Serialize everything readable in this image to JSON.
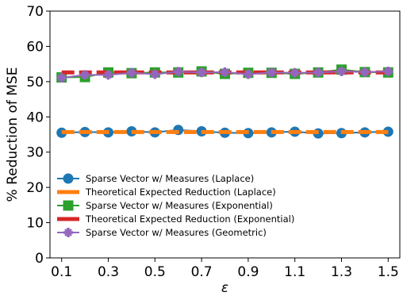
{
  "chart_data": {
    "type": "line",
    "xlabel": "ε",
    "ylabel": "% Reduction of MSE",
    "xlim": [
      0.05,
      1.55
    ],
    "ylim": [
      0,
      70
    ],
    "xticks": [
      0.1,
      0.3,
      0.5,
      0.7,
      0.9,
      1.1,
      1.3,
      1.5
    ],
    "xtick_labels": [
      "0.1",
      "0.3",
      "0.5",
      "0.7",
      "0.9",
      "1.1",
      "1.3",
      "1.5"
    ],
    "yticks": [
      0,
      10,
      20,
      30,
      40,
      50,
      60,
      70
    ],
    "ytick_labels": [
      "0",
      "10",
      "20",
      "30",
      "40",
      "50",
      "60",
      "70"
    ],
    "x": [
      0.1,
      0.2,
      0.3,
      0.4,
      0.5,
      0.6,
      0.7,
      0.8,
      0.9,
      1.0,
      1.1,
      1.2,
      1.3,
      1.4,
      1.5
    ],
    "legend_position": "lower-left",
    "series": [
      {
        "name": "Sparse Vector w/ Measures (Laplace)",
        "style": "line-circle",
        "color": "#1f77b4",
        "values": [
          35.5,
          35.7,
          35.6,
          35.9,
          35.6,
          36.3,
          35.9,
          35.5,
          35.4,
          35.6,
          35.8,
          35.3,
          35.4,
          35.6,
          35.8
        ]
      },
      {
        "name": "Theoretical Expected Reduction (Laplace)",
        "style": "dashed",
        "color": "#ff7f0e",
        "values": [
          35.7,
          35.7,
          35.7,
          35.7,
          35.7,
          35.7,
          35.7,
          35.7,
          35.7,
          35.7,
          35.7,
          35.7,
          35.7,
          35.7,
          35.7
        ]
      },
      {
        "name": "Sparse Vector w/ Measures (Exponential)",
        "style": "line-square",
        "color": "#2ca02c",
        "values": [
          51.2,
          51.3,
          52.6,
          52.4,
          52.6,
          52.6,
          52.9,
          52.2,
          52.5,
          52.5,
          52.2,
          52.6,
          53.4,
          52.7,
          52.6
        ]
      },
      {
        "name": "Theoretical Expected Reduction (Exponential)",
        "style": "dashed",
        "color": "#d62728",
        "values": [
          52.6,
          52.6,
          52.6,
          52.6,
          52.6,
          52.6,
          52.6,
          52.6,
          52.6,
          52.6,
          52.6,
          52.6,
          52.6,
          52.6,
          52.6
        ]
      },
      {
        "name": "Sparse Vector w/ Measures (Geometric)",
        "style": "line-plus",
        "color": "#9467bd",
        "values": [
          51.1,
          51.9,
          51.9,
          52.5,
          52.1,
          52.8,
          52.6,
          52.7,
          52.1,
          52.6,
          52.5,
          52.6,
          52.9,
          52.7,
          52.9
        ]
      }
    ]
  }
}
